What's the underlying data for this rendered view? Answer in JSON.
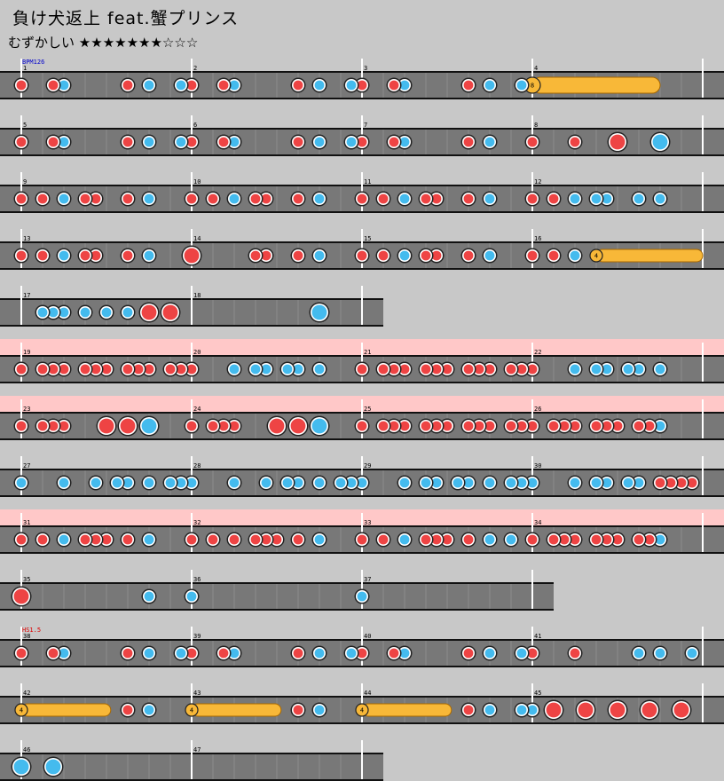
{
  "song": {
    "title": "負け犬返上 feat.蟹プリンス",
    "difficulty_label": "むずかしい",
    "stars_filled": 7,
    "stars_total": 10
  },
  "colors": {
    "background": "#c8c8c8",
    "lane": "#787878",
    "don": "#ee4444",
    "ka": "#44bbee",
    "drumroll": "#f8b838",
    "gogo": "#ffc8c8",
    "bpm_text": "#0000cc",
    "hs_text": "#dd0000"
  },
  "markers": [
    {
      "row": 0,
      "kind": "bpm",
      "text": "BPM126"
    },
    {
      "row": 10,
      "kind": "hs",
      "text": "HS1.5"
    }
  ],
  "rows": [
    {
      "bars": [
        1,
        2,
        3,
        4
      ],
      "gogo": false,
      "notes": [
        [
          0,
          "d"
        ],
        [
          1.5,
          "d"
        ],
        [
          2,
          "k"
        ],
        [
          5,
          "d"
        ],
        [
          6,
          "k"
        ],
        [
          7.5,
          "k"
        ],
        [
          8,
          "d"
        ],
        [
          9.5,
          "d"
        ],
        [
          10,
          "k"
        ],
        [
          13,
          "d"
        ],
        [
          14,
          "k"
        ],
        [
          15.5,
          "k"
        ],
        [
          16,
          "d"
        ],
        [
          17.5,
          "d"
        ],
        [
          18,
          "k"
        ],
        [
          21,
          "d"
        ],
        [
          22,
          "k"
        ],
        [
          23.5,
          "k"
        ]
      ],
      "rolls": [
        {
          "start": 24,
          "end": 30,
          "big": true,
          "count": "8"
        }
      ]
    },
    {
      "bars": [
        5,
        6,
        7,
        8
      ],
      "gogo": false,
      "notes": [
        [
          0,
          "d"
        ],
        [
          1.5,
          "d"
        ],
        [
          2,
          "k"
        ],
        [
          5,
          "d"
        ],
        [
          6,
          "k"
        ],
        [
          7.5,
          "k"
        ],
        [
          8,
          "d"
        ],
        [
          9.5,
          "d"
        ],
        [
          10,
          "k"
        ],
        [
          13,
          "d"
        ],
        [
          14,
          "k"
        ],
        [
          15.5,
          "k"
        ],
        [
          16,
          "d"
        ],
        [
          17.5,
          "d"
        ],
        [
          18,
          "k"
        ],
        [
          21,
          "d"
        ],
        [
          22,
          "k"
        ],
        [
          24,
          "d"
        ],
        [
          26,
          "d"
        ],
        [
          28,
          "D"
        ],
        [
          30,
          "K"
        ]
      ],
      "rolls": []
    },
    {
      "bars": [
        9,
        10,
        11,
        12
      ],
      "gogo": false,
      "notes": [
        [
          0,
          "d"
        ],
        [
          1,
          "d"
        ],
        [
          2,
          "k"
        ],
        [
          3,
          "d"
        ],
        [
          3.5,
          "d"
        ],
        [
          5,
          "d"
        ],
        [
          6,
          "k"
        ],
        [
          8,
          "d"
        ],
        [
          9,
          "d"
        ],
        [
          10,
          "k"
        ],
        [
          11,
          "d"
        ],
        [
          11.5,
          "d"
        ],
        [
          13,
          "d"
        ],
        [
          14,
          "k"
        ],
        [
          16,
          "d"
        ],
        [
          17,
          "d"
        ],
        [
          18,
          "k"
        ],
        [
          19,
          "d"
        ],
        [
          19.5,
          "d"
        ],
        [
          21,
          "d"
        ],
        [
          22,
          "k"
        ],
        [
          24,
          "d"
        ],
        [
          25,
          "d"
        ],
        [
          26,
          "k"
        ],
        [
          27,
          "k"
        ],
        [
          27.5,
          "k"
        ],
        [
          29,
          "k"
        ],
        [
          30,
          "k"
        ]
      ],
      "rolls": []
    },
    {
      "bars": [
        13,
        14,
        15,
        16
      ],
      "gogo": false,
      "notes": [
        [
          0,
          "d"
        ],
        [
          1,
          "d"
        ],
        [
          2,
          "k"
        ],
        [
          3,
          "d"
        ],
        [
          3.5,
          "d"
        ],
        [
          5,
          "d"
        ],
        [
          6,
          "k"
        ],
        [
          8,
          "D"
        ],
        [
          11,
          "d"
        ],
        [
          11.5,
          "d"
        ],
        [
          13,
          "d"
        ],
        [
          14,
          "k"
        ],
        [
          16,
          "d"
        ],
        [
          17,
          "d"
        ],
        [
          18,
          "k"
        ],
        [
          19,
          "d"
        ],
        [
          19.5,
          "d"
        ],
        [
          21,
          "d"
        ],
        [
          22,
          "k"
        ],
        [
          24,
          "d"
        ],
        [
          25,
          "d"
        ],
        [
          26,
          "k"
        ]
      ],
      "rolls": [
        {
          "start": 27,
          "end": 32,
          "big": false,
          "count": "4"
        }
      ]
    },
    {
      "bars": [
        17,
        18
      ],
      "gogo": false,
      "notes": [
        [
          1,
          "k"
        ],
        [
          1.5,
          "k"
        ],
        [
          2,
          "k"
        ],
        [
          3,
          "k"
        ],
        [
          4,
          "k"
        ],
        [
          5,
          "k"
        ],
        [
          6,
          "D"
        ],
        [
          7,
          "D"
        ],
        [
          14,
          "K"
        ]
      ],
      "rolls": []
    },
    {
      "bars": [
        19,
        20,
        21,
        22
      ],
      "gogo": true,
      "notes": [
        [
          0,
          "d"
        ],
        [
          1,
          "d"
        ],
        [
          1.5,
          "d"
        ],
        [
          2,
          "d"
        ],
        [
          3,
          "d"
        ],
        [
          3.5,
          "d"
        ],
        [
          4,
          "d"
        ],
        [
          5,
          "d"
        ],
        [
          5.5,
          "d"
        ],
        [
          6,
          "d"
        ],
        [
          7,
          "d"
        ],
        [
          7.5,
          "d"
        ],
        [
          8,
          "d"
        ],
        [
          10,
          "k"
        ],
        [
          11,
          "k"
        ],
        [
          11.5,
          "k"
        ],
        [
          12.5,
          "k"
        ],
        [
          13,
          "k"
        ],
        [
          14,
          "k"
        ],
        [
          16,
          "d"
        ],
        [
          17,
          "d"
        ],
        [
          17.5,
          "d"
        ],
        [
          18,
          "d"
        ],
        [
          19,
          "d"
        ],
        [
          19.5,
          "d"
        ],
        [
          20,
          "d"
        ],
        [
          21,
          "d"
        ],
        [
          21.5,
          "d"
        ],
        [
          22,
          "d"
        ],
        [
          23,
          "d"
        ],
        [
          23.5,
          "d"
        ],
        [
          24,
          "d"
        ],
        [
          26,
          "k"
        ],
        [
          27,
          "k"
        ],
        [
          27.5,
          "k"
        ],
        [
          28.5,
          "k"
        ],
        [
          29,
          "k"
        ],
        [
          30,
          "k"
        ]
      ],
      "rolls": []
    },
    {
      "bars": [
        23,
        24,
        25,
        26
      ],
      "gogo": true,
      "notes": [
        [
          0,
          "d"
        ],
        [
          1,
          "d"
        ],
        [
          1.5,
          "d"
        ],
        [
          2,
          "d"
        ],
        [
          4,
          "D"
        ],
        [
          5,
          "D"
        ],
        [
          6,
          "K"
        ],
        [
          8,
          "d"
        ],
        [
          9,
          "d"
        ],
        [
          9.5,
          "d"
        ],
        [
          10,
          "d"
        ],
        [
          12,
          "D"
        ],
        [
          13,
          "D"
        ],
        [
          14,
          "K"
        ],
        [
          16,
          "d"
        ],
        [
          17,
          "d"
        ],
        [
          17.5,
          "d"
        ],
        [
          18,
          "d"
        ],
        [
          19,
          "d"
        ],
        [
          19.5,
          "d"
        ],
        [
          20,
          "d"
        ],
        [
          21,
          "d"
        ],
        [
          21.5,
          "d"
        ],
        [
          22,
          "d"
        ],
        [
          23,
          "d"
        ],
        [
          23.5,
          "d"
        ],
        [
          24,
          "d"
        ],
        [
          25,
          "d"
        ],
        [
          25.5,
          "d"
        ],
        [
          26,
          "d"
        ],
        [
          27,
          "d"
        ],
        [
          27.5,
          "d"
        ],
        [
          28,
          "d"
        ],
        [
          29,
          "d"
        ],
        [
          29.5,
          "d"
        ],
        [
          30,
          "k"
        ]
      ],
      "rolls": []
    },
    {
      "bars": [
        27,
        28,
        29,
        30
      ],
      "gogo": false,
      "notes": [
        [
          0,
          "k"
        ],
        [
          2,
          "k"
        ],
        [
          3.5,
          "k"
        ],
        [
          4.5,
          "k"
        ],
        [
          5,
          "k"
        ],
        [
          6,
          "k"
        ],
        [
          7,
          "k"
        ],
        [
          7.5,
          "k"
        ],
        [
          8,
          "k"
        ],
        [
          10,
          "k"
        ],
        [
          11.5,
          "k"
        ],
        [
          12.5,
          "k"
        ],
        [
          13,
          "k"
        ],
        [
          14,
          "k"
        ],
        [
          15,
          "k"
        ],
        [
          15.5,
          "k"
        ],
        [
          16,
          "k"
        ],
        [
          18,
          "k"
        ],
        [
          19,
          "k"
        ],
        [
          19.5,
          "k"
        ],
        [
          20.5,
          "k"
        ],
        [
          21,
          "k"
        ],
        [
          22,
          "k"
        ],
        [
          23,
          "k"
        ],
        [
          23.5,
          "k"
        ],
        [
          24,
          "k"
        ],
        [
          26,
          "k"
        ],
        [
          27,
          "k"
        ],
        [
          27.5,
          "k"
        ],
        [
          28.5,
          "k"
        ],
        [
          29,
          "k"
        ],
        [
          30,
          "d"
        ],
        [
          30.5,
          "d"
        ],
        [
          31,
          "d"
        ],
        [
          31.5,
          "d"
        ]
      ],
      "rolls": []
    },
    {
      "bars": [
        31,
        32,
        33,
        34
      ],
      "gogo": true,
      "notes": [
        [
          0,
          "d"
        ],
        [
          1,
          "d"
        ],
        [
          2,
          "k"
        ],
        [
          3,
          "d"
        ],
        [
          3.5,
          "d"
        ],
        [
          4,
          "d"
        ],
        [
          5,
          "d"
        ],
        [
          6,
          "k"
        ],
        [
          8,
          "d"
        ],
        [
          9,
          "d"
        ],
        [
          10,
          "d"
        ],
        [
          11,
          "d"
        ],
        [
          11.5,
          "d"
        ],
        [
          12,
          "d"
        ],
        [
          13,
          "d"
        ],
        [
          14,
          "k"
        ],
        [
          16,
          "d"
        ],
        [
          17,
          "d"
        ],
        [
          18,
          "k"
        ],
        [
          19,
          "d"
        ],
        [
          19.5,
          "d"
        ],
        [
          20,
          "d"
        ],
        [
          21,
          "d"
        ],
        [
          22,
          "k"
        ],
        [
          23,
          "k"
        ],
        [
          24,
          "d"
        ],
        [
          25,
          "d"
        ],
        [
          25.5,
          "d"
        ],
        [
          26,
          "d"
        ],
        [
          27,
          "d"
        ],
        [
          27.5,
          "d"
        ],
        [
          28,
          "d"
        ],
        [
          29,
          "d"
        ],
        [
          29.5,
          "d"
        ],
        [
          30,
          "k"
        ]
      ],
      "rolls": []
    },
    {
      "bars": [
        35,
        36,
        37
      ],
      "gogo": false,
      "notes": [
        [
          0,
          "D"
        ],
        [
          6,
          "k"
        ],
        [
          8,
          "k"
        ],
        [
          16,
          "k"
        ]
      ],
      "rolls": []
    },
    {
      "bars": [
        38,
        39,
        40,
        41
      ],
      "gogo": false,
      "notes": [
        [
          0,
          "d"
        ],
        [
          1.5,
          "d"
        ],
        [
          2,
          "k"
        ],
        [
          5,
          "d"
        ],
        [
          6,
          "k"
        ],
        [
          7.5,
          "k"
        ],
        [
          8,
          "d"
        ],
        [
          9.5,
          "d"
        ],
        [
          10,
          "k"
        ],
        [
          13,
          "d"
        ],
        [
          14,
          "k"
        ],
        [
          15.5,
          "k"
        ],
        [
          16,
          "d"
        ],
        [
          17.5,
          "d"
        ],
        [
          18,
          "k"
        ],
        [
          21,
          "d"
        ],
        [
          22,
          "k"
        ],
        [
          23.5,
          "k"
        ],
        [
          24,
          "d"
        ],
        [
          26,
          "d"
        ],
        [
          29,
          "k"
        ],
        [
          30,
          "k"
        ],
        [
          31.5,
          "k"
        ]
      ],
      "rolls": []
    },
    {
      "bars": [
        42,
        43,
        44,
        45
      ],
      "gogo": false,
      "notes": [
        [
          5,
          "d"
        ],
        [
          6,
          "k"
        ],
        [
          13,
          "d"
        ],
        [
          14,
          "k"
        ],
        [
          21,
          "d"
        ],
        [
          22,
          "k"
        ],
        [
          23.5,
          "k"
        ],
        [
          24,
          "k"
        ],
        [
          25,
          "D"
        ],
        [
          26.5,
          "D"
        ],
        [
          28,
          "D"
        ],
        [
          29.5,
          "D"
        ],
        [
          31,
          "D"
        ]
      ],
      "rolls": [
        {
          "start": 0,
          "end": 4.2,
          "big": false,
          "count": "4"
        },
        {
          "start": 8,
          "end": 12.2,
          "big": false,
          "count": "4"
        },
        {
          "start": 16,
          "end": 20.2,
          "big": false,
          "count": "4"
        }
      ]
    },
    {
      "bars": [
        46,
        47
      ],
      "gogo": false,
      "notes": [
        [
          0,
          "K"
        ],
        [
          1.5,
          "K"
        ]
      ],
      "rolls": []
    }
  ]
}
